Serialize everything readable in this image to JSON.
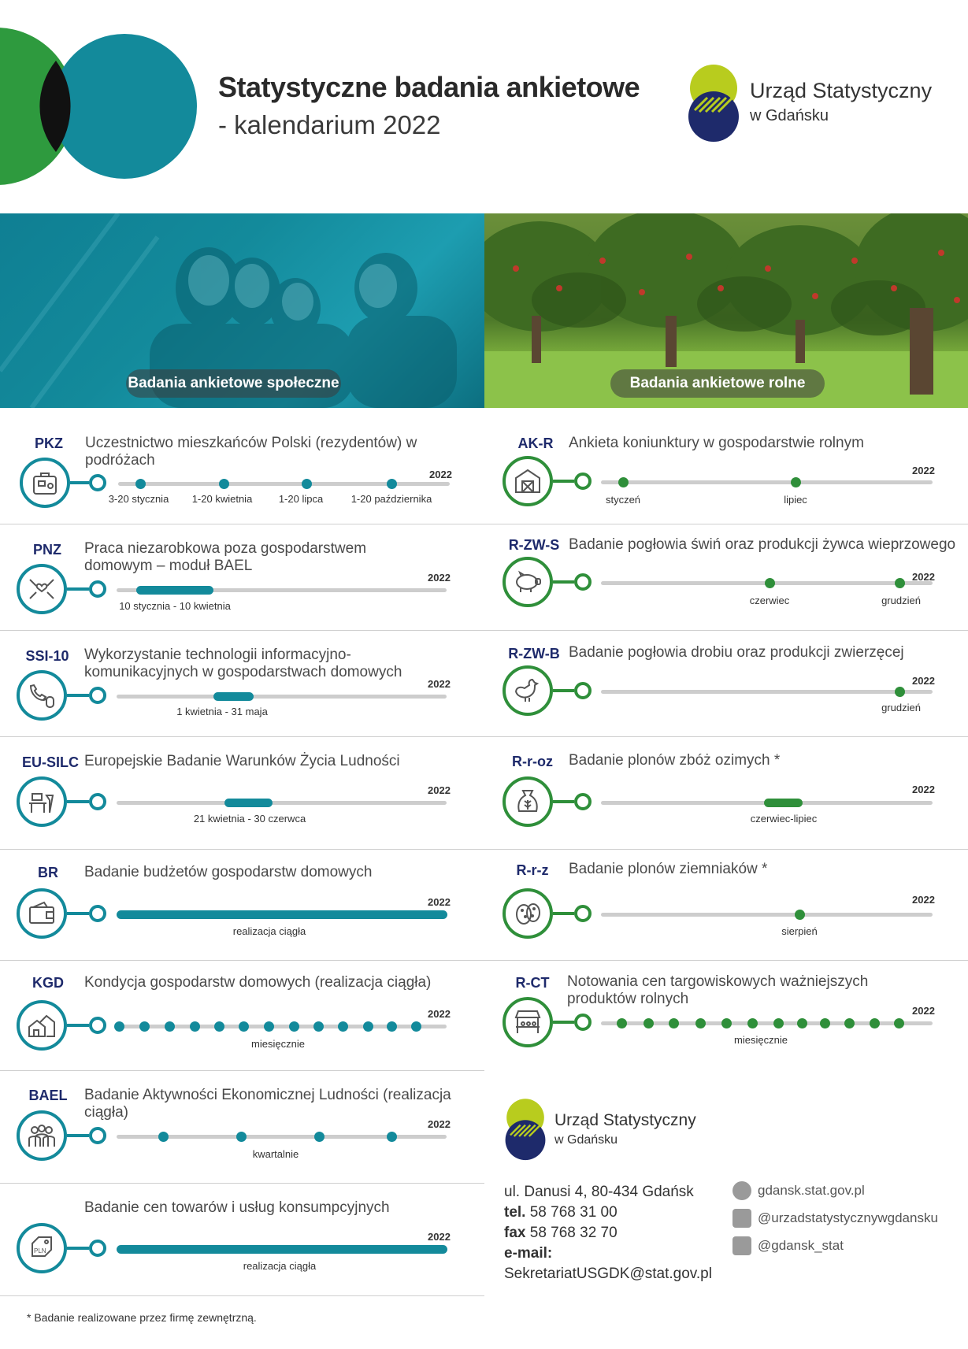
{
  "header": {
    "title": "Statystyczne badania ankietowe",
    "subtitle": "- kalendarium 2022"
  },
  "logo": {
    "line1": "Urząd Statystyczny",
    "line2": "w Gdańsku"
  },
  "photos": {
    "social_label": "Badania ankietowe społeczne",
    "agricultural_label": "Badania ankietowe rolne"
  },
  "year_label": "2022",
  "social_surveys": [
    {
      "code": "PKZ",
      "title": "Uczestnictwo mieszkańców Polski (rezydentów) w podróżach",
      "icon": "suitcase-icon",
      "timeline": "points",
      "labels": [
        "3-20 stycznia",
        "1-20 kwietnia",
        "1-20 lipca",
        "1-20 października"
      ]
    },
    {
      "code": "PNZ",
      "title": "Praca niezarobkowa poza gospodarstwem domowym – moduł BAEL",
      "icon": "hands-heart-icon",
      "timeline": "bar",
      "labels": [
        "10 stycznia - 10 kwietnia"
      ]
    },
    {
      "code": "SSI-10",
      "title": "Wykorzystanie technologii informacyjno-komunikacyjnych w gospodarstwach domowych",
      "icon": "phone-mouse-icon",
      "timeline": "bar",
      "labels": [
        "1 kwietnia - 31 maja"
      ]
    },
    {
      "code": "EU-SILC",
      "title": "Europejskie Badanie Warunków Życia Ludności",
      "icon": "desk-lamp-icon",
      "timeline": "bar",
      "labels": [
        "21 kwietnia - 30 czerwca"
      ]
    },
    {
      "code": "BR",
      "title": "Badanie budżetów gospodarstw domowych",
      "icon": "wallet-icon",
      "timeline": "full",
      "labels": [
        "realizacja ciągła"
      ]
    },
    {
      "code": "KGD",
      "title": "Kondycja gospodarstw domowych (realizacja ciągła)",
      "icon": "houses-icon",
      "timeline": "monthly",
      "labels": [
        "miesięcznie"
      ]
    },
    {
      "code": "BAEL",
      "title": "Badanie Aktywności Ekonomicznej Ludności (realizacja ciągła)",
      "icon": "people-icon",
      "timeline": "quarterly",
      "labels": [
        "kwartalnie"
      ]
    },
    {
      "code": "",
      "title": "Badanie cen towarów i usług konsumpcyjnych",
      "icon": "price-tag-icon",
      "timeline": "full",
      "labels": [
        "realizacja ciągła"
      ]
    }
  ],
  "agricultural_surveys": [
    {
      "code": "AK-R",
      "title": "Ankieta koniunktury w gospodarstwie rolnym",
      "icon": "barn-icon",
      "timeline": "points",
      "labels": [
        "styczeń",
        "lipiec"
      ]
    },
    {
      "code": "R-ZW-S",
      "title": "Badanie pogłowia świń oraz produkcji żywca wieprzowego",
      "icon": "pig-icon",
      "timeline": "points",
      "labels": [
        "czerwiec",
        "grudzień"
      ]
    },
    {
      "code": "R-ZW-B",
      "title": "Badanie pogłowia drobiu oraz produkcji zwierzęcej",
      "icon": "rooster-icon",
      "timeline": "points",
      "labels": [
        "grudzień"
      ]
    },
    {
      "code": "R-r-oz",
      "title": "Badanie plonów zbóż ozimych *",
      "icon": "grain-sack-icon",
      "timeline": "bar",
      "labels": [
        "czerwiec-lipiec"
      ]
    },
    {
      "code": "R-r-z",
      "title": "Badanie plonów ziemniaków *",
      "icon": "potatoes-icon",
      "timeline": "points",
      "labels": [
        "sierpień"
      ]
    },
    {
      "code": "R-CT",
      "title": "Notowania cen targowiskowych ważniejszych produktów rolnych",
      "icon": "market-stall-icon",
      "timeline": "monthly",
      "labels": [
        "miesięcznie"
      ]
    }
  ],
  "contact": {
    "address": "ul. Danusi 4, 80-434 Gdańsk",
    "tel_label": "tel.",
    "tel": "58 768 31 00",
    "fax_label": "fax",
    "fax": "58 768 32 70",
    "email_label": "e-mail:",
    "email": "SekretariatUSGDK@stat.gov.pl",
    "website": "gdansk.stat.gov.pl",
    "facebook": "@urzadstatystycznywgdansku",
    "twitter": "@gdansk_stat"
  },
  "footnote": "* Badanie realizowane przez firmę zewnętrzną.",
  "colors": {
    "teal": "#138a9b",
    "green": "#2f8f3a",
    "navy": "#1e2a6b",
    "lime": "#b8cc1e"
  }
}
